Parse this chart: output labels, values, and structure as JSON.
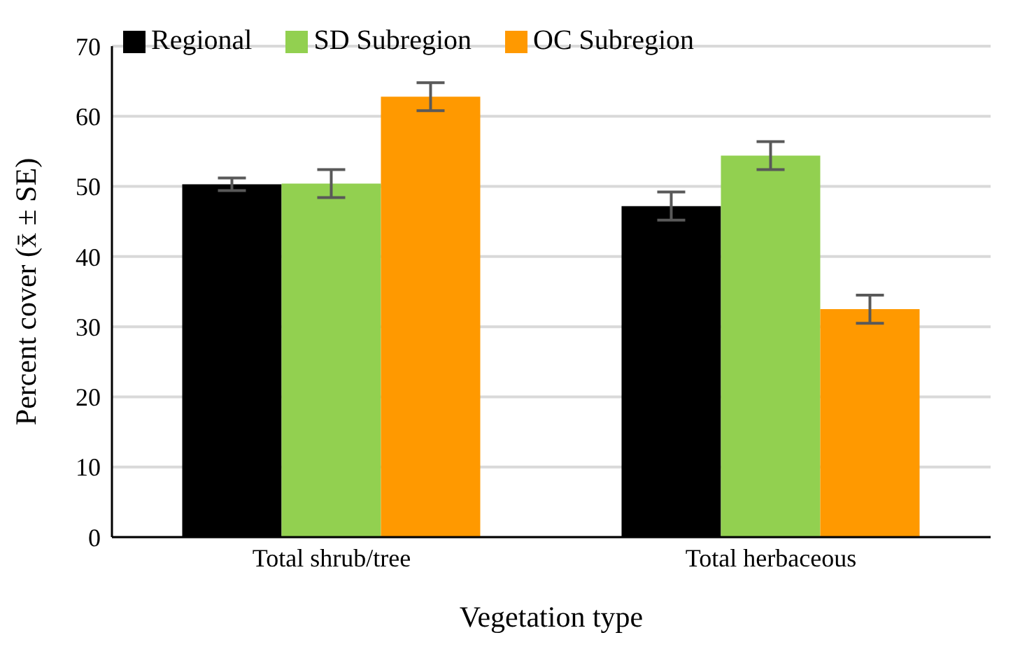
{
  "chart_data": {
    "type": "bar",
    "xlabel": "Vegetation type",
    "ylabel": "Percent cover (x̄ ± SE)",
    "categories": [
      "Total shrub/tree",
      "Total herbaceous"
    ],
    "series": [
      {
        "name": "Regional",
        "color": "#000000",
        "values": [
          50.3,
          47.2
        ],
        "errors": [
          0.9,
          2
        ]
      },
      {
        "name": "SD Subregion",
        "color": "#92d050",
        "values": [
          50.4,
          54.4
        ],
        "errors": [
          2,
          2
        ]
      },
      {
        "name": "OC Subregion",
        "color": "#ff9900",
        "values": [
          62.8,
          32.5
        ],
        "errors": [
          2,
          2
        ]
      }
    ],
    "ylim": [
      0,
      70
    ],
    "yticks": [
      0,
      10,
      20,
      30,
      40,
      50,
      60,
      70
    ],
    "grid": "y",
    "legend": "top left"
  }
}
